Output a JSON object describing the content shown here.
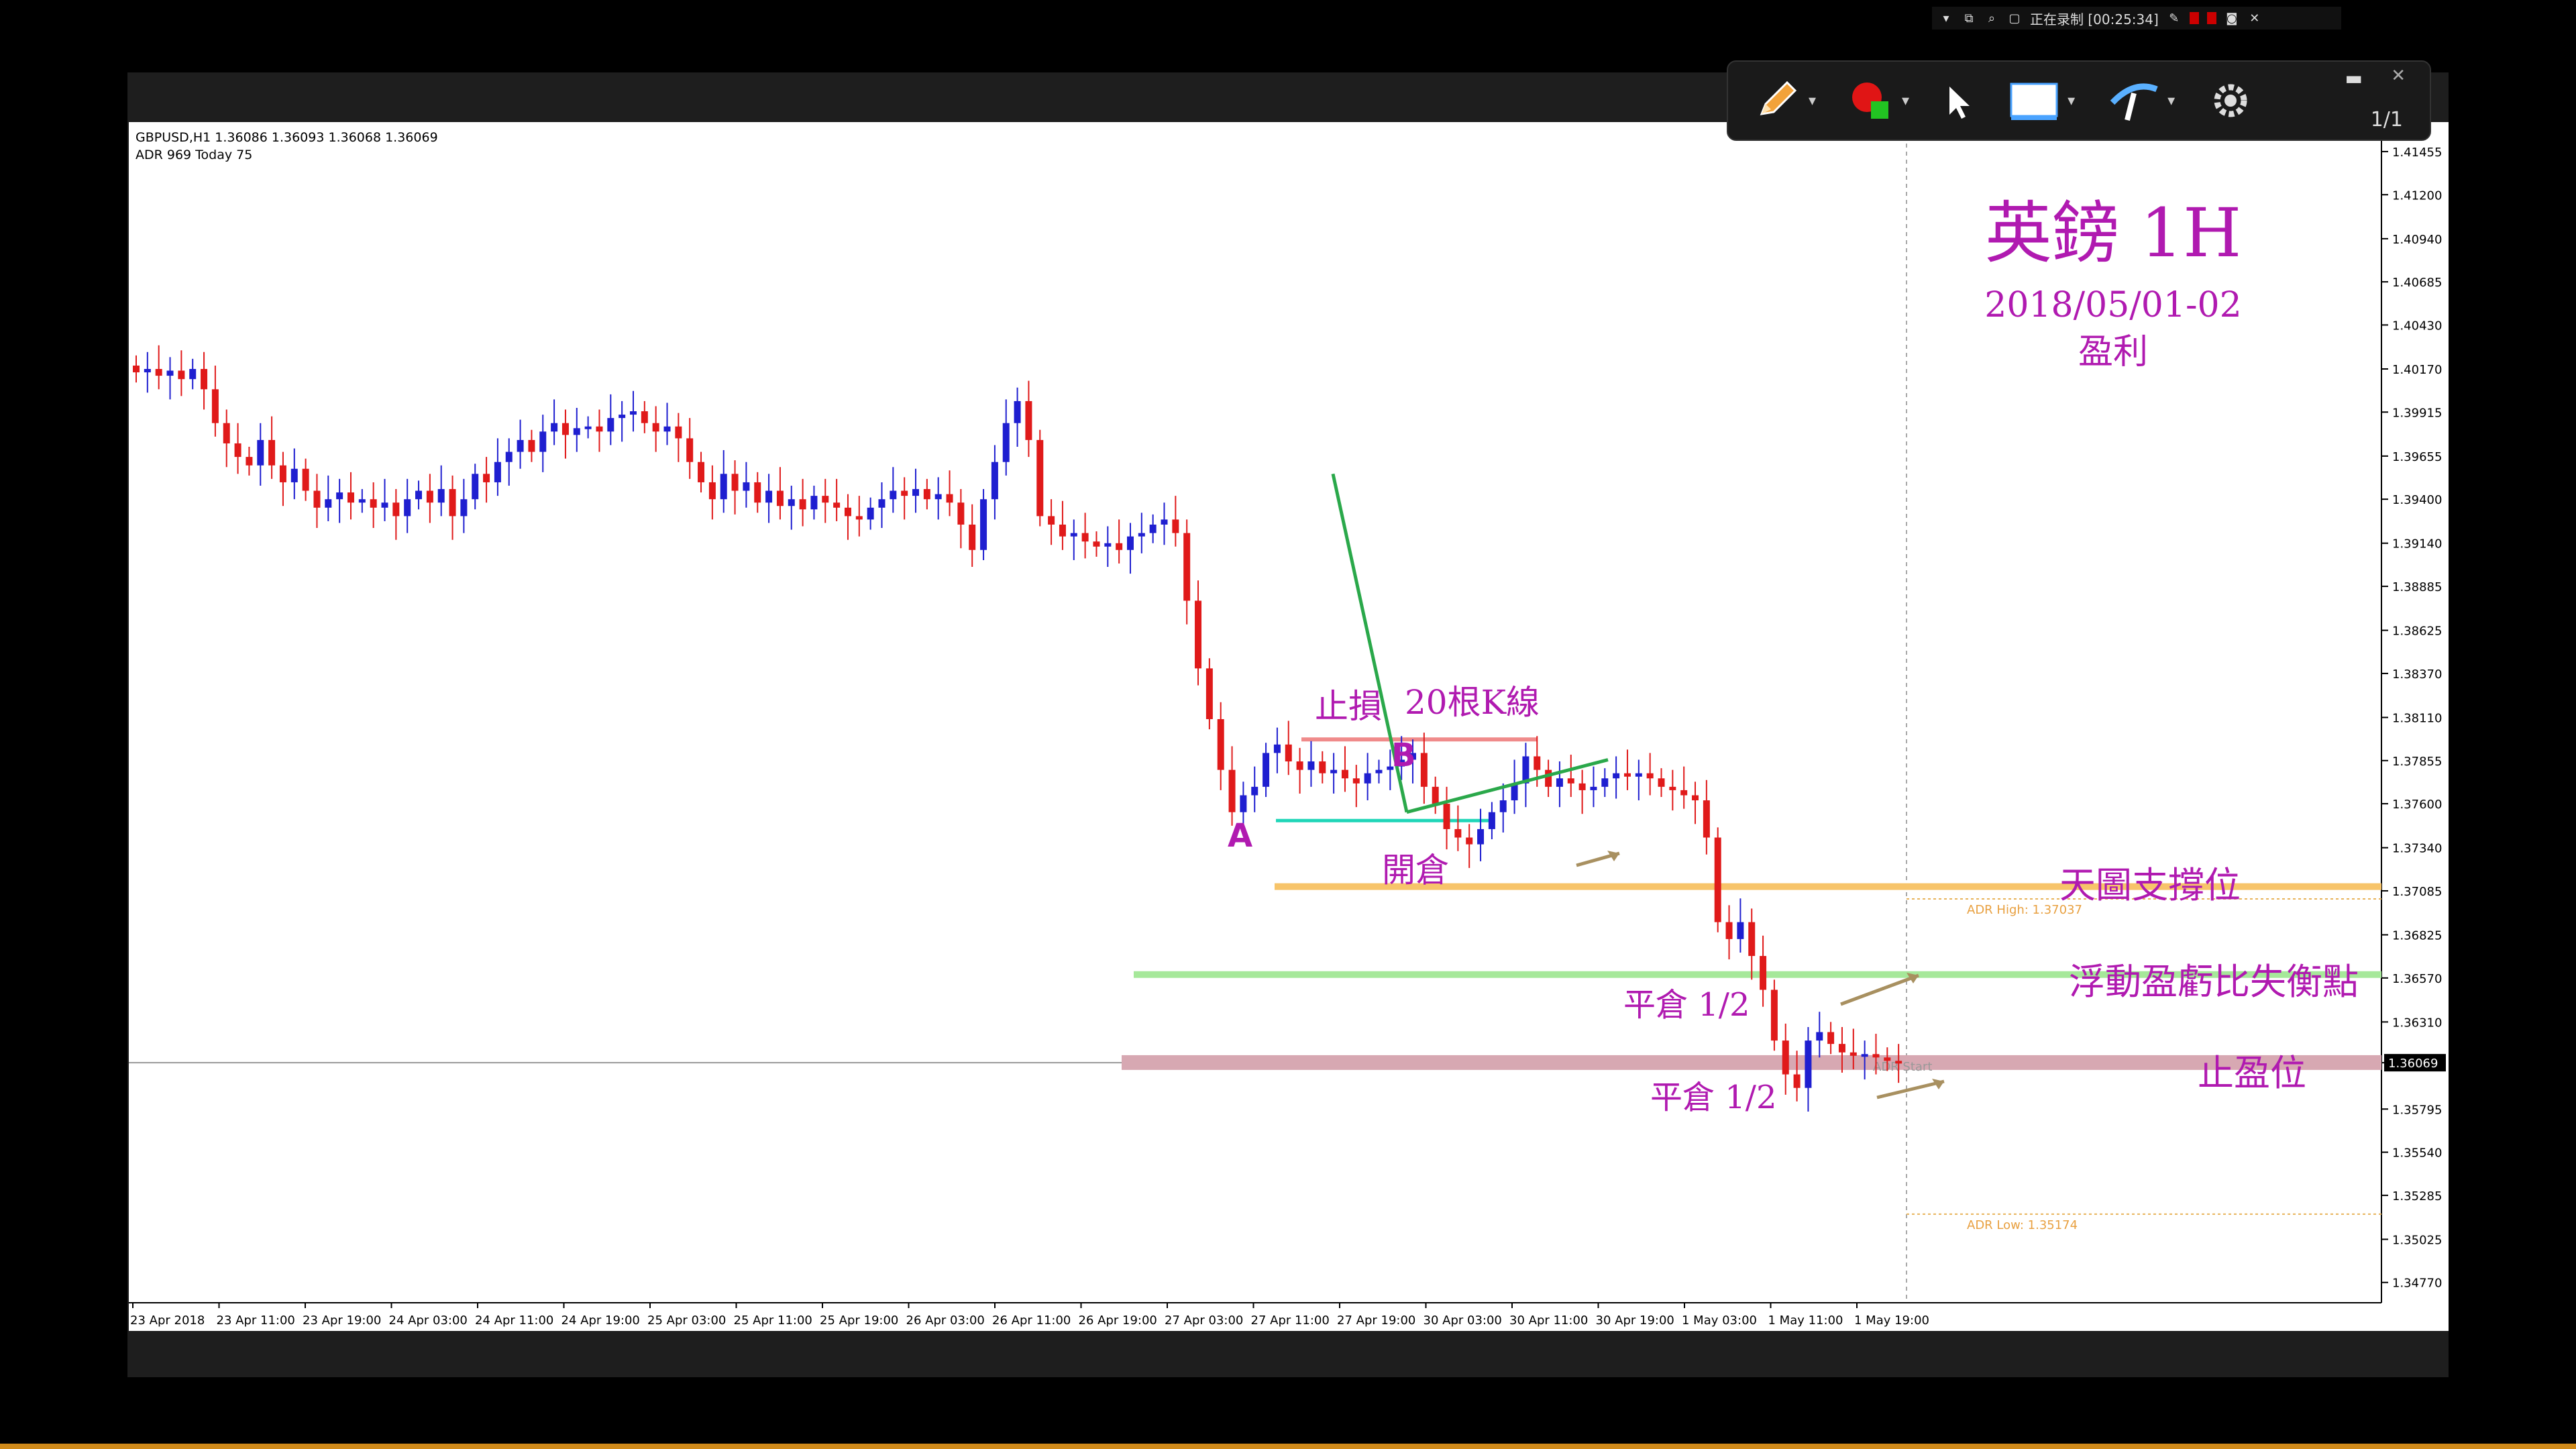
{
  "recorder": {
    "status": "正在录制 [00:25:34]"
  },
  "annotation_toolbar": {
    "page_indicator": "1/1",
    "tools": [
      "pencil-icon",
      "color-picker-icon",
      "pointer-icon",
      "rectangle-icon",
      "highlighter-icon",
      "gear-icon"
    ]
  },
  "chart": {
    "symbol_line": "GBPUSD,H1  1.36086 1.36093 1.36068 1.36069",
    "adr_line": "ADR 969  Today 75",
    "title": "英鎊  1H",
    "date_range": "2018/05/01-02",
    "subtitle": "盈利",
    "current_price_label": "1.36069",
    "annotations": {
      "stop_loss": "止損",
      "bars_20": "20根K線",
      "point_a": "A",
      "point_b": "B",
      "open_position": "開倉",
      "close_half_1": "平倉  1/2",
      "close_half_2": "平倉  1/2",
      "support": "天圖支撐位",
      "breakeven": "浮動盈虧比失衡點",
      "take_profit": "止盈位",
      "adr_high": "ADR High: 1.37037",
      "adr_low": "ADR Low: 1.35174",
      "adr_start": "ADR Start"
    },
    "colors": {
      "bull": "#1f1fd0",
      "bear": "#e01a1a",
      "annotation_text": "#b01ab0",
      "support_line": "#f7c46a",
      "breakeven_line": "#a6e89a",
      "tp_band": "#d7a8b2",
      "trend_green": "#2aa84a",
      "cyan_line": "#1fd6b8",
      "stop_line": "#f08a8a"
    }
  },
  "chart_data": {
    "type": "candlestick",
    "y_ticks": [
      "1.41455",
      "1.41200",
      "1.40940",
      "1.40685",
      "1.40430",
      "1.40170",
      "1.39915",
      "1.39655",
      "1.39400",
      "1.39140",
      "1.38885",
      "1.38625",
      "1.38370",
      "1.38110",
      "1.37855",
      "1.37600",
      "1.37340",
      "1.37085",
      "1.36825",
      "1.36570",
      "1.36310",
      "1.36069",
      "1.35795",
      "1.35540",
      "1.35285",
      "1.35025",
      "1.34770"
    ],
    "x_ticks": [
      "23 Apr 2018",
      "23 Apr 11:00",
      "23 Apr 19:00",
      "24 Apr 03:00",
      "24 Apr 11:00",
      "24 Apr 19:00",
      "25 Apr 03:00",
      "25 Apr 11:00",
      "25 Apr 19:00",
      "26 Apr 03:00",
      "26 Apr 11:00",
      "26 Apr 19:00",
      "27 Apr 03:00",
      "27 Apr 11:00",
      "27 Apr 19:00",
      "30 Apr 03:00",
      "30 Apr 11:00",
      "30 Apr 19:00",
      "1 May 03:00",
      "1 May 11:00",
      "1 May 19:00"
    ],
    "ylim": [
      1.3465,
      1.4155
    ],
    "levels": {
      "support": 1.3711,
      "breakeven": 1.3659,
      "take_profit": 1.3607,
      "stop_loss": 1.3798,
      "entry": 1.375,
      "adr_high": 1.37037,
      "adr_low": 1.35174
    },
    "close_path": [
      1.4015,
      1.4017,
      1.4013,
      1.4016,
      1.4011,
      1.4017,
      1.4005,
      1.3985,
      1.3973,
      1.3965,
      1.396,
      1.3975,
      1.396,
      1.395,
      1.3958,
      1.3945,
      1.3935,
      1.394,
      1.3944,
      1.3938,
      1.394,
      1.3935,
      1.3938,
      1.393,
      1.394,
      1.3945,
      1.3938,
      1.3946,
      1.393,
      1.394,
      1.3955,
      1.395,
      1.3962,
      1.3968,
      1.3975,
      1.3968,
      1.398,
      1.3985,
      1.3978,
      1.3982,
      1.3983,
      1.398,
      1.3988,
      1.399,
      1.3992,
      1.3985,
      1.398,
      1.3983,
      1.3976,
      1.3962,
      1.395,
      1.394,
      1.3955,
      1.3945,
      1.395,
      1.3938,
      1.3945,
      1.3936,
      1.394,
      1.3934,
      1.3942,
      1.3938,
      1.3935,
      1.393,
      1.3928,
      1.3935,
      1.394,
      1.3945,
      1.3942,
      1.3946,
      1.394,
      1.3943,
      1.3938,
      1.3925,
      1.391,
      1.394,
      1.3962,
      1.3985,
      1.3998,
      1.3975,
      1.393,
      1.3925,
      1.3918,
      1.392,
      1.3915,
      1.3912,
      1.3914,
      1.391,
      1.3918,
      1.392,
      1.3925,
      1.3928,
      1.392,
      1.388,
      1.384,
      1.381,
      1.378,
      1.3755,
      1.3765,
      1.377,
      1.379,
      1.3795,
      1.3785,
      1.378,
      1.3785,
      1.3778,
      1.378,
      1.3775,
      1.3772,
      1.3778,
      1.378,
      1.3782,
      1.3786,
      1.379,
      1.377,
      1.376,
      1.3745,
      1.374,
      1.3736,
      1.3745,
      1.3755,
      1.3762,
      1.3772,
      1.3788,
      1.378,
      1.377,
      1.3775,
      1.3772,
      1.3768,
      1.377,
      1.3775,
      1.3778,
      1.3776,
      1.3778,
      1.3775,
      1.377,
      1.3768,
      1.3765,
      1.3762,
      1.374,
      1.369,
      1.368,
      1.369,
      1.367,
      1.365,
      1.362,
      1.36,
      1.3592,
      1.362,
      1.3625,
      1.3618,
      1.3613,
      1.3611,
      1.3612,
      1.361,
      1.3608,
      1.3607
    ]
  }
}
